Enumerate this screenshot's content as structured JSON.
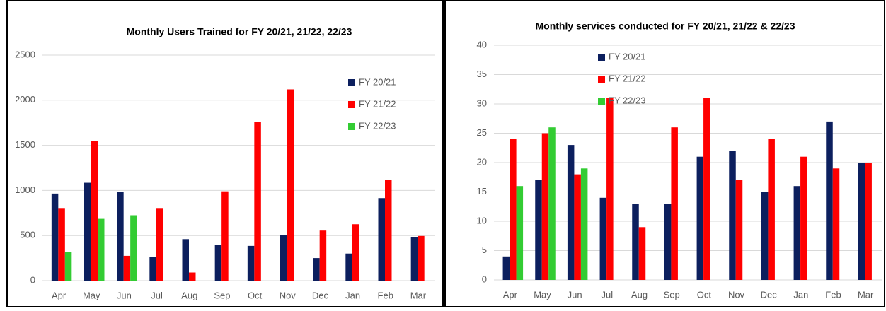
{
  "chart_data": [
    {
      "type": "bar",
      "title": "Monthly Users Trained for FY 20/21, 21/22, 22/23",
      "categories": [
        "Apr",
        "May",
        "Jun",
        "Jul",
        "Aug",
        "Sep",
        "Oct",
        "Nov",
        "Dec",
        "Jan",
        "Feb",
        "Mar"
      ],
      "series": [
        {
          "name": "FY 20/21",
          "color": "#0c1f5e",
          "values": [
            965,
            1085,
            985,
            265,
            460,
            395,
            385,
            505,
            250,
            300,
            915,
            480
          ]
        },
        {
          "name": "FY 21/22",
          "color": "#ff0000",
          "values": [
            805,
            1545,
            275,
            805,
            90,
            990,
            1760,
            2120,
            555,
            625,
            1120,
            495
          ]
        },
        {
          "name": "FY 22/23",
          "color": "#33cc33",
          "values": [
            315,
            685,
            725,
            null,
            null,
            null,
            null,
            null,
            null,
            null,
            null,
            null
          ]
        }
      ],
      "ylim": [
        0,
        2500
      ],
      "yticks": [
        0,
        500,
        1000,
        1500,
        2000,
        2500
      ],
      "grid": true,
      "legend": "upper right"
    },
    {
      "type": "bar",
      "title": "Monthly services conducted for FY 20/21, 21/22 & 22/23",
      "categories": [
        "Apr",
        "May",
        "Jun",
        "Jul",
        "Aug",
        "Sep",
        "Oct",
        "Nov",
        "Dec",
        "Jan",
        "Feb",
        "Mar"
      ],
      "series": [
        {
          "name": "FY 20/21",
          "color": "#0c1f5e",
          "values": [
            4,
            17,
            23,
            14,
            13,
            13,
            21,
            22,
            15,
            16,
            27,
            20
          ]
        },
        {
          "name": "FY 21/22",
          "color": "#ff0000",
          "values": [
            24,
            25,
            18,
            31,
            9,
            26,
            31,
            17,
            24,
            21,
            19,
            20
          ]
        },
        {
          "name": "FY 22/23",
          "color": "#33cc33",
          "values": [
            16,
            26,
            19,
            null,
            null,
            null,
            null,
            null,
            null,
            null,
            null,
            null
          ]
        }
      ],
      "ylim": [
        0,
        40
      ],
      "yticks": [
        0,
        5,
        10,
        15,
        20,
        25,
        30,
        35,
        40
      ],
      "grid": true,
      "legend": "upper left"
    }
  ]
}
